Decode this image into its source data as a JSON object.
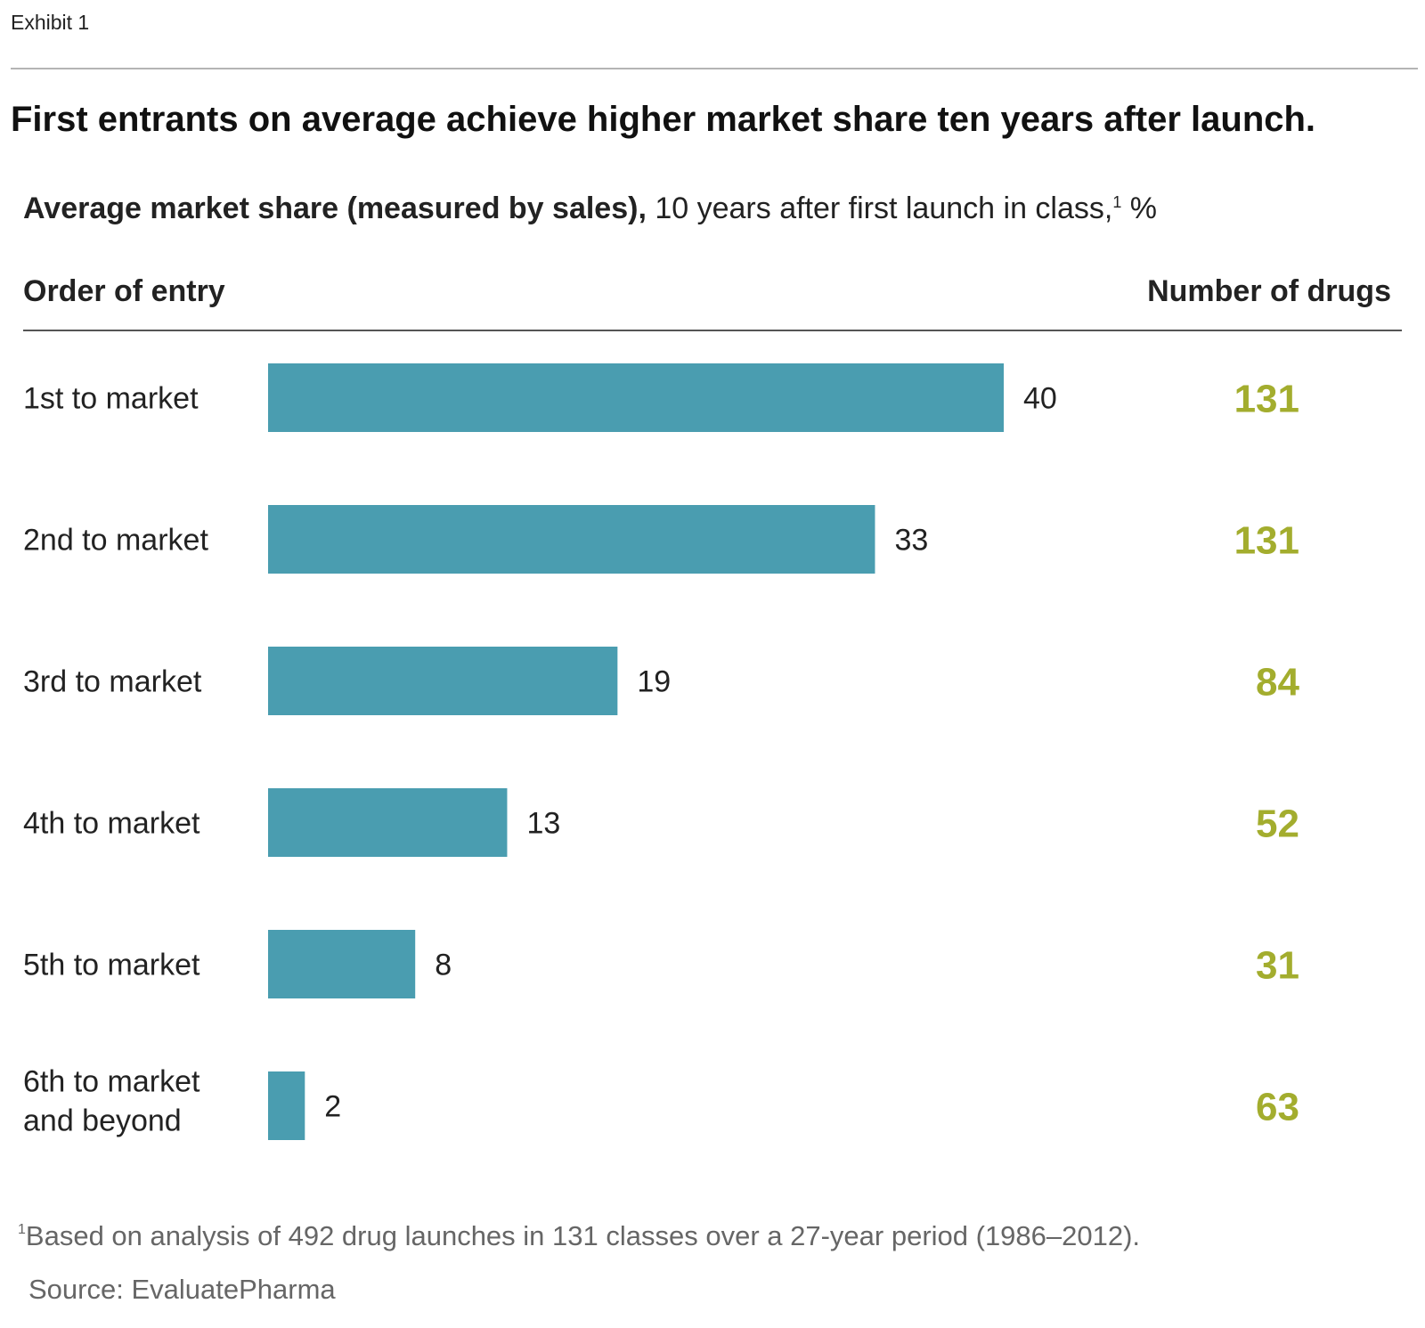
{
  "header": {
    "exhibit": "Exhibit 1",
    "title": "First entrants on average achieve higher market share ten years after launch.",
    "subtitle_bold": "Average market share (measured by sales),",
    "subtitle_rest": " 10 years after first launch in class,",
    "subtitle_sup": "1",
    "subtitle_unit": " %"
  },
  "columns": {
    "left": "Order of entry",
    "right": "Number of drugs"
  },
  "colors": {
    "bar": "#4a9db0",
    "count": "#a3ad2e"
  },
  "chart_data": {
    "type": "bar",
    "orientation": "horizontal",
    "categories": [
      [
        "1st to market"
      ],
      [
        "2nd to market"
      ],
      [
        "3rd to market"
      ],
      [
        "4th to market"
      ],
      [
        "5th to market"
      ],
      [
        "6th to market",
        "and beyond"
      ]
    ],
    "values": [
      40,
      33,
      19,
      13,
      8,
      2
    ],
    "value_labels": [
      "40",
      "33",
      "19",
      "13",
      "8",
      "2"
    ],
    "number_of_drugs": [
      "131",
      "131",
      "84",
      "52",
      "31",
      "63"
    ],
    "xlim": [
      0,
      40
    ],
    "grid": false,
    "legend": "none"
  },
  "footer": {
    "footnote_sup": "1",
    "footnote": "Based on analysis of 492 drug launches in 131 classes over a 27-year period (1986–2012).",
    "source": "Source: EvaluatePharma"
  }
}
